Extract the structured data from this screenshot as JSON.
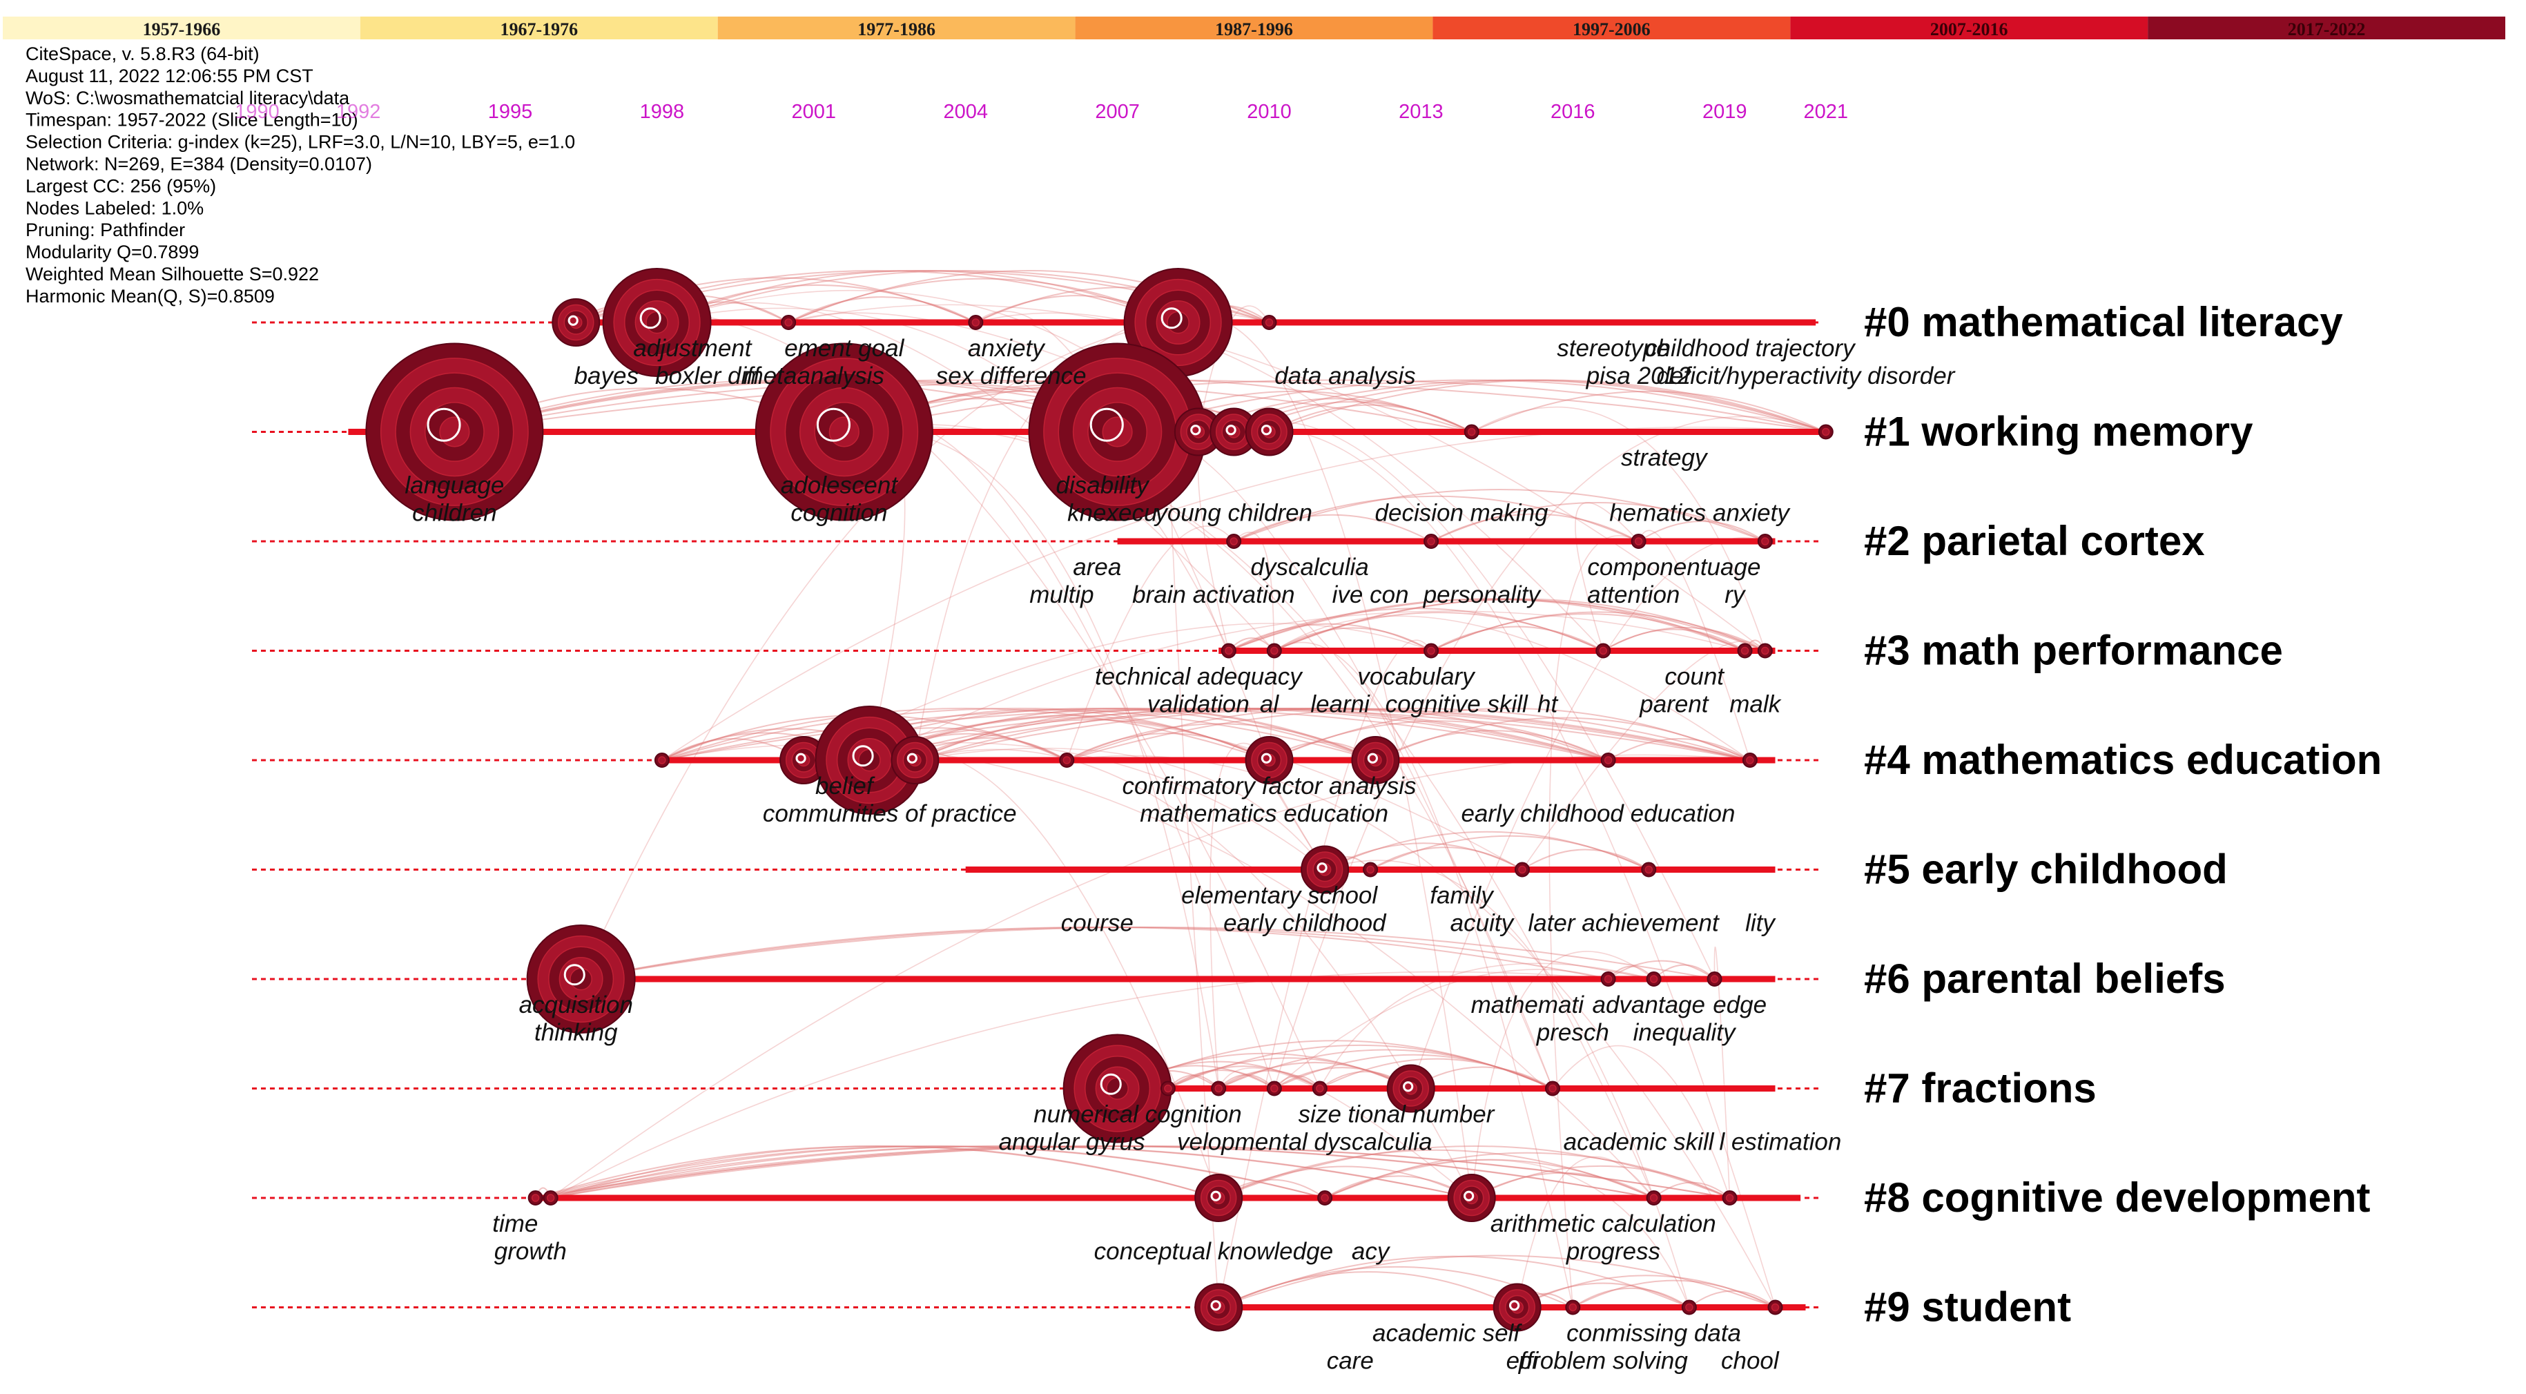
{
  "colors": {
    "line": "#e8101f",
    "node_dark": "#7a0a1e",
    "node_mid": "#a8142c",
    "node_ring": "#c02034",
    "arc": "#e07a7a",
    "year_text": "#cc14c8"
  },
  "timeline_periods": [
    {
      "label": "1957-1966",
      "color": "#fff5c6"
    },
    {
      "label": "1967-1976",
      "color": "#fde48a"
    },
    {
      "label": "1977-1986",
      "color": "#fbb95a"
    },
    {
      "label": "1987-1996",
      "color": "#f8953f"
    },
    {
      "label": "1997-2006",
      "color": "#ef4a2a"
    },
    {
      "label": "2007-2016",
      "color": "#d50d25"
    },
    {
      "label": "2017-2022",
      "color": "#8c0a22"
    }
  ],
  "info_lines": [
    "CiteSpace, v. 5.8.R3 (64-bit)",
    "August 11, 2022 12:06:55 PM CST",
    "WoS: C:\\wosmathematcial literacy\\data",
    "Timespan: 1957-2022 (Slice Length=10)",
    "Selection Criteria: g-index (k=25), LRF=3.0, L/N=10, LBY=5, e=1.0",
    "Network: N=269, E=384 (Density=0.0107)",
    "Largest CC: 256 (95%)",
    "Nodes Labeled: 1.0%",
    "Pruning: Pathfinder",
    "Modularity Q=0.7899",
    "Weighted Mean Silhouette S=0.922",
    "Harmonic Mean(Q, S)=0.8509"
  ],
  "year_axis": [
    {
      "year": 1990,
      "label": "1990"
    },
    {
      "year": 1992,
      "label": "1992"
    },
    {
      "year": 1995,
      "label": "1995"
    },
    {
      "year": 1998,
      "label": "1998"
    },
    {
      "year": 2001,
      "label": "2001"
    },
    {
      "year": 2004,
      "label": "2004"
    },
    {
      "year": 2007,
      "label": "2007"
    },
    {
      "year": 2010,
      "label": "2010"
    },
    {
      "year": 2013,
      "label": "2013"
    },
    {
      "year": 2016,
      "label": "2016"
    },
    {
      "year": 2019,
      "label": "2019"
    },
    {
      "year": 2021,
      "label": "2021"
    }
  ],
  "clusters": [
    {
      "label": "#0 mathematical literacy",
      "start": 1996.2,
      "end": 2020.8,
      "nodes": [
        {
          "year": 1996.3,
          "size": 1
        },
        {
          "year": 1997.9,
          "size": 2
        },
        {
          "year": 2000.5,
          "size": 0
        },
        {
          "year": 2004.2,
          "size": 0
        },
        {
          "year": 2008.2,
          "size": 2
        },
        {
          "year": 2010.0,
          "size": 0
        }
      ],
      "terms": [
        {
          "text": "adjustment",
          "year": 1998.6,
          "row": 1
        },
        {
          "text": "ement goal",
          "year": 2001.6,
          "row": 1
        },
        {
          "text": "anxiety",
          "year": 2004.8,
          "row": 1
        },
        {
          "text": "stereotype",
          "year": 2016.8,
          "row": 1
        },
        {
          "text": "childhood trajectory",
          "year": 2019.5,
          "row": 1
        },
        {
          "text": "bayes",
          "year": 1996.9,
          "row": 2
        },
        {
          "text": "boxler diff",
          "year": 1998.9,
          "row": 2
        },
        {
          "text": "metaanalysis",
          "year": 2001.0,
          "row": 2
        },
        {
          "text": "sex difference",
          "year": 2004.9,
          "row": 2
        },
        {
          "text": "data analysis",
          "year": 2011.5,
          "row": 2
        },
        {
          "text": "pisa 2012",
          "year": 2017.3,
          "row": 2
        },
        {
          "text": "deficit/hyperactivity disorder",
          "year": 2020.6,
          "row": 2
        }
      ]
    },
    {
      "label": "#1 working memory",
      "start": 1991.8,
      "end": 2021.0,
      "nodes": [
        {
          "year": 1993.9,
          "size": 3
        },
        {
          "year": 2001.6,
          "size": 3
        },
        {
          "year": 2007.0,
          "size": 3
        },
        {
          "year": 2008.6,
          "size": 1
        },
        {
          "year": 2009.3,
          "size": 1
        },
        {
          "year": 2010.0,
          "size": 1
        },
        {
          "year": 2014.0,
          "size": 0
        },
        {
          "year": 2021.0,
          "size": 0
        }
      ],
      "terms": [
        {
          "text": "strategy",
          "year": 2017.8,
          "row": 1
        },
        {
          "text": "language",
          "year": 1993.9,
          "row": 2
        },
        {
          "text": "adolescent",
          "year": 2001.5,
          "row": 2
        },
        {
          "text": "disability",
          "year": 2006.7,
          "row": 2
        },
        {
          "text": "children",
          "year": 1993.9,
          "row": 3
        },
        {
          "text": "cognition",
          "year": 2001.5,
          "row": 3
        },
        {
          "text": "knexecu",
          "year": 2006.9,
          "row": 3
        },
        {
          "text": "young children",
          "year": 2009.3,
          "row": 3
        },
        {
          "text": "decision making",
          "year": 2013.8,
          "row": 3
        },
        {
          "text": "hematics anxiety",
          "year": 2018.5,
          "row": 3
        }
      ]
    },
    {
      "label": "#2 parietal cortex",
      "start": 2007.0,
      "end": 2020.0,
      "nodes": [
        {
          "year": 2009.3,
          "size": 0
        },
        {
          "year": 2013.2,
          "size": 0
        },
        {
          "year": 2017.3,
          "size": 0
        },
        {
          "year": 2019.8,
          "size": 0
        }
      ],
      "terms": [
        {
          "text": "area",
          "year": 2006.6,
          "row": 1
        },
        {
          "text": "dyscalculia",
          "year": 2010.8,
          "row": 1
        },
        {
          "text": "componentuage",
          "year": 2018.0,
          "row": 1
        },
        {
          "text": "multip",
          "year": 2005.9,
          "row": 2
        },
        {
          "text": "brain activation",
          "year": 2008.9,
          "row": 2
        },
        {
          "text": "ive con",
          "year": 2012.0,
          "row": 2
        },
        {
          "text": "personality",
          "year": 2014.2,
          "row": 2
        },
        {
          "text": "attention",
          "year": 2017.2,
          "row": 2
        },
        {
          "text": "ry",
          "year": 2019.2,
          "row": 2
        }
      ]
    },
    {
      "label": "#3 math performance",
      "start": 2009.0,
      "end": 2020.0,
      "nodes": [
        {
          "year": 2009.2,
          "size": 0
        },
        {
          "year": 2010.1,
          "size": 0
        },
        {
          "year": 2013.2,
          "size": 0
        },
        {
          "year": 2016.6,
          "size": 0
        },
        {
          "year": 2019.4,
          "size": 0
        },
        {
          "year": 2019.8,
          "size": 0
        }
      ],
      "terms": [
        {
          "text": "technical adequacy",
          "year": 2008.6,
          "row": 1
        },
        {
          "text": "vocabulary",
          "year": 2012.9,
          "row": 1
        },
        {
          "text": "count",
          "year": 2018.4,
          "row": 1
        },
        {
          "text": "validation",
          "year": 2008.6,
          "row": 2
        },
        {
          "text": "al",
          "year": 2010.0,
          "row": 2
        },
        {
          "text": "learni",
          "year": 2011.4,
          "row": 2
        },
        {
          "text": "cognitive skill",
          "year": 2013.7,
          "row": 2
        },
        {
          "text": "ht",
          "year": 2015.5,
          "row": 2
        },
        {
          "text": "parent",
          "year": 2018.0,
          "row": 2
        },
        {
          "text": "malk",
          "year": 2019.6,
          "row": 2
        }
      ]
    },
    {
      "label": "#4 mathematics education",
      "start": 1997.9,
      "end": 2020.0,
      "nodes": [
        {
          "year": 1998.0,
          "size": 0
        },
        {
          "year": 2000.8,
          "size": 1
        },
        {
          "year": 2002.1,
          "size": 2
        },
        {
          "year": 2003.0,
          "size": 1
        },
        {
          "year": 2006.0,
          "size": 0
        },
        {
          "year": 2010.0,
          "size": 1
        },
        {
          "year": 2012.1,
          "size": 1
        },
        {
          "year": 2016.7,
          "size": 0
        },
        {
          "year": 2019.5,
          "size": 0
        }
      ],
      "terms": [
        {
          "text": "belief",
          "year": 2001.6,
          "row": 1
        },
        {
          "text": "confirmatory factor analysis",
          "year": 2010.0,
          "row": 1
        },
        {
          "text": "communities of practice",
          "year": 2002.5,
          "row": 2
        },
        {
          "text": "mathematics education",
          "year": 2009.9,
          "row": 2
        },
        {
          "text": "early childhood education",
          "year": 2016.5,
          "row": 2
        }
      ]
    },
    {
      "label": "#5 early childhood",
      "start": 2004.0,
      "end": 2020.0,
      "nodes": [
        {
          "year": 2011.1,
          "size": 1
        },
        {
          "year": 2012.0,
          "size": 0
        },
        {
          "year": 2015.0,
          "size": 0
        },
        {
          "year": 2017.5,
          "size": 0
        }
      ],
      "terms": [
        {
          "text": "elementary school",
          "year": 2010.2,
          "row": 1
        },
        {
          "text": "family",
          "year": 2013.8,
          "row": 1
        },
        {
          "text": "course",
          "year": 2006.6,
          "row": 2
        },
        {
          "text": "early childhood",
          "year": 2010.7,
          "row": 2
        },
        {
          "text": "acuity",
          "year": 2014.2,
          "row": 2
        },
        {
          "text": "later achievement",
          "year": 2017.0,
          "row": 2
        },
        {
          "text": "lity",
          "year": 2019.7,
          "row": 2
        }
      ]
    },
    {
      "label": "#6 parental beliefs",
      "start": 1995.6,
      "end": 2020.0,
      "nodes": [
        {
          "year": 1996.4,
          "size": 2
        },
        {
          "year": 2016.7,
          "size": 0
        },
        {
          "year": 2017.6,
          "size": 0
        },
        {
          "year": 2018.8,
          "size": 0
        }
      ],
      "terms": [
        {
          "text": "mathemati",
          "year": 2015.1,
          "row": 1
        },
        {
          "text": "advantage",
          "year": 2017.5,
          "row": 1
        },
        {
          "text": "edge",
          "year": 2019.3,
          "row": 1
        },
        {
          "text": "acquisition",
          "year": 1996.3,
          "row": 1
        },
        {
          "text": "thinking",
          "year": 1996.3,
          "row": 2
        },
        {
          "text": "presch",
          "year": 2016.0,
          "row": 2
        },
        {
          "text": "inequality",
          "year": 2018.2,
          "row": 2
        }
      ]
    },
    {
      "label": "#7 fractions",
      "start": 2006.6,
      "end": 2020.0,
      "nodes": [
        {
          "year": 2007.0,
          "size": 2
        },
        {
          "year": 2008.0,
          "size": 0
        },
        {
          "year": 2009.0,
          "size": 0
        },
        {
          "year": 2010.1,
          "size": 0
        },
        {
          "year": 2011.0,
          "size": 0
        },
        {
          "year": 2012.8,
          "size": 1
        },
        {
          "year": 2015.6,
          "size": 0
        }
      ],
      "terms": [
        {
          "text": "numerical cognition",
          "year": 2007.4,
          "row": 1
        },
        {
          "text": "size",
          "year": 2011.0,
          "row": 1
        },
        {
          "text": "tional number",
          "year": 2013.0,
          "row": 1
        },
        {
          "text": "angular gyrus",
          "year": 2006.1,
          "row": 2
        },
        {
          "text": "velopmental dyscalculia",
          "year": 2010.7,
          "row": 2
        },
        {
          "text": "academic skill",
          "year": 2017.3,
          "row": 2
        },
        {
          "text": "l estimation",
          "year": 2020.1,
          "row": 2
        }
      ]
    },
    {
      "label": "#8 cognitive development",
      "start": 1995.5,
      "end": 2020.5,
      "nodes": [
        {
          "year": 1995.5,
          "size": 0
        },
        {
          "year": 1995.8,
          "size": 0
        },
        {
          "year": 2009.0,
          "size": 1
        },
        {
          "year": 2011.1,
          "size": 0
        },
        {
          "year": 2014.0,
          "size": 1
        },
        {
          "year": 2017.6,
          "size": 0
        },
        {
          "year": 2019.1,
          "size": 0
        }
      ],
      "terms": [
        {
          "text": "time",
          "year": 1995.1,
          "row": 1
        },
        {
          "text": "arithmetic calculation",
          "year": 2016.6,
          "row": 1
        },
        {
          "text": "growth",
          "year": 1995.4,
          "row": 2
        },
        {
          "text": "conceptual knowledge",
          "year": 2008.9,
          "row": 2
        },
        {
          "text": "acy",
          "year": 2012.0,
          "row": 2
        },
        {
          "text": "progress",
          "year": 2016.8,
          "row": 2
        }
      ]
    },
    {
      "label": "#9 student",
      "start": 2009.0,
      "end": 2020.6,
      "nodes": [
        {
          "year": 2009.0,
          "size": 1
        },
        {
          "year": 2014.9,
          "size": 1
        },
        {
          "year": 2016.0,
          "size": 0
        },
        {
          "year": 2018.3,
          "size": 0
        },
        {
          "year": 2020.0,
          "size": 0
        }
      ],
      "terms": [
        {
          "text": "academic self",
          "year": 2013.5,
          "row": 1
        },
        {
          "text": "conmissing data",
          "year": 2017.6,
          "row": 1
        },
        {
          "text": "care",
          "year": 2011.6,
          "row": 2
        },
        {
          "text": "effi",
          "year": 2015.0,
          "row": 2
        },
        {
          "text": "problem solving",
          "year": 2016.6,
          "row": 2
        },
        {
          "text": "chool",
          "year": 2019.5,
          "row": 2
        }
      ]
    }
  ]
}
